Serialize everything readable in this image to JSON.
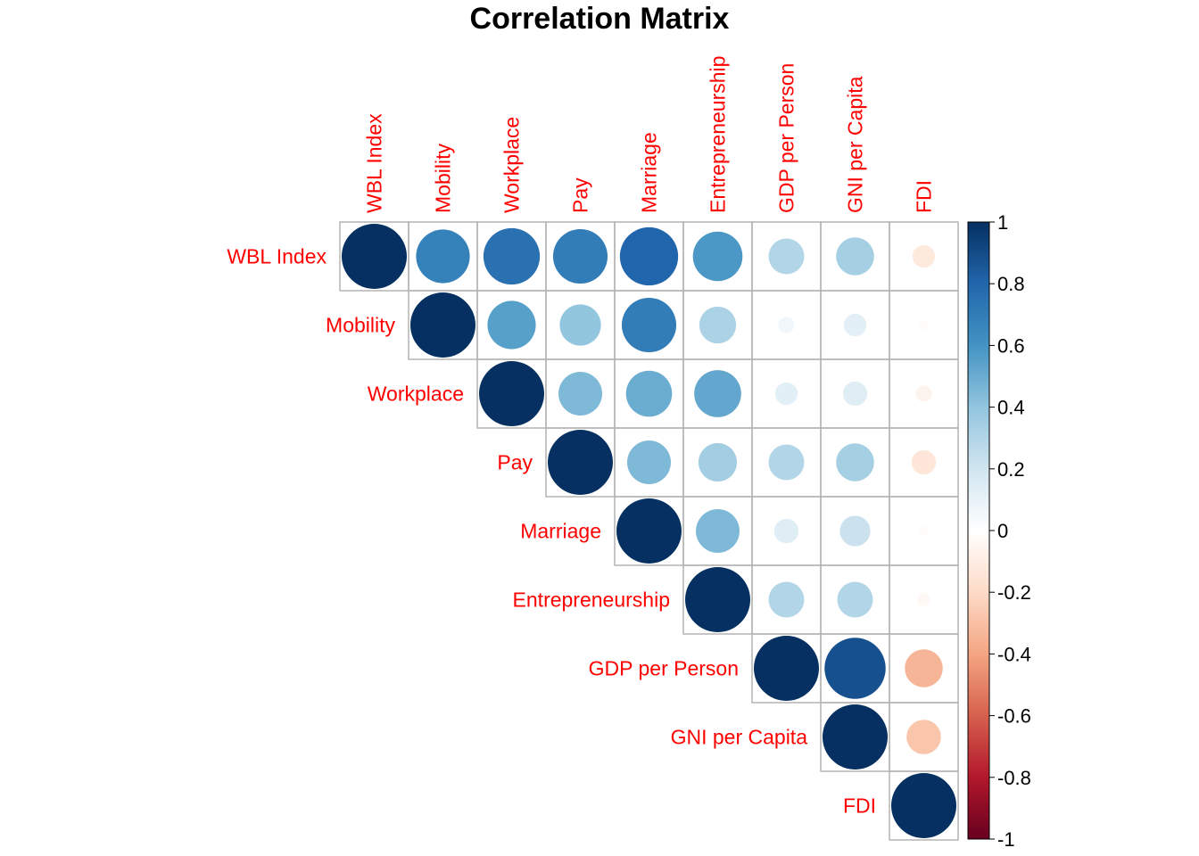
{
  "chart_data": {
    "type": "heatmap",
    "title": "Correlation Matrix",
    "variables": [
      "WBL Index",
      "Mobility",
      "Workplace",
      "Pay",
      "Marriage",
      "Entrepreneurship",
      "GDP per Person",
      "GNI per Capita",
      "FDI"
    ],
    "matrix": [
      [
        1.0,
        0.68,
        0.75,
        0.7,
        0.8,
        0.58,
        0.3,
        0.34,
        -0.12
      ],
      [
        0.68,
        1.0,
        0.55,
        0.4,
        0.7,
        0.32,
        0.06,
        0.12,
        -0.02
      ],
      [
        0.75,
        0.55,
        1.0,
        0.45,
        0.5,
        0.52,
        0.12,
        0.14,
        -0.06
      ],
      [
        0.7,
        0.4,
        0.45,
        1.0,
        0.45,
        0.35,
        0.3,
        0.34,
        -0.14
      ],
      [
        0.8,
        0.7,
        0.5,
        0.45,
        1.0,
        0.45,
        0.14,
        0.22,
        -0.02
      ],
      [
        0.58,
        0.32,
        0.52,
        0.35,
        0.45,
        1.0,
        0.3,
        0.3,
        -0.04
      ],
      [
        0.3,
        0.06,
        0.12,
        0.3,
        0.14,
        0.3,
        1.0,
        0.88,
        -0.34
      ],
      [
        0.34,
        0.12,
        0.14,
        0.34,
        0.22,
        0.3,
        0.88,
        1.0,
        -0.28
      ],
      [
        -0.12,
        -0.02,
        -0.06,
        -0.14,
        -0.02,
        -0.04,
        -0.34,
        -0.28,
        1.0
      ]
    ],
    "shape": "circle",
    "display": "upper triangle",
    "color_scale": {
      "min": -1,
      "max": 1,
      "ticks": [
        "1",
        "0.8",
        "0.6",
        "0.4",
        "0.2",
        "0",
        "-0.2",
        "-0.4",
        "-0.6",
        "-0.8",
        "-1"
      ],
      "palette": [
        "#67001F",
        "#B2182B",
        "#D6604D",
        "#F4A582",
        "#FDDBC7",
        "#FFFFFF",
        "#D1E5F0",
        "#92C5DE",
        "#4393C3",
        "#2166AC",
        "#053061"
      ]
    },
    "label_color": "#FF0000",
    "grid_color": "#B4B4B4"
  }
}
